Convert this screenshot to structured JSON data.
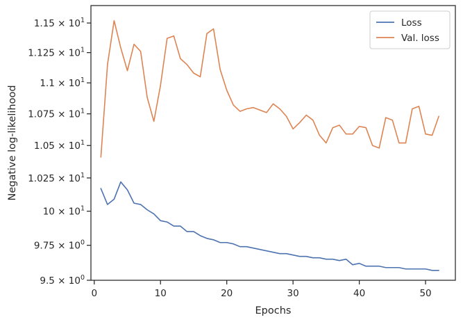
{
  "chart_data": {
    "type": "line",
    "xlabel": "Epochs",
    "ylabel": "Negative log-likelihood",
    "xlim": [
      -0.5,
      54.5
    ],
    "ylim": [
      9.5,
      11.65
    ],
    "yscale": "log",
    "grid": false,
    "legend_position": "top-right",
    "x_ticks": [
      {
        "value": 0,
        "label": "0"
      },
      {
        "value": 10,
        "label": "10"
      },
      {
        "value": 20,
        "label": "20"
      },
      {
        "value": 30,
        "label": "30"
      },
      {
        "value": 40,
        "label": "40"
      },
      {
        "value": 50,
        "label": "50"
      }
    ],
    "y_ticks": [
      {
        "value": 9.5,
        "mant": "9.5",
        "exp": "0"
      },
      {
        "value": 9.75,
        "mant": "9.75",
        "exp": "0"
      },
      {
        "value": 10.0,
        "mant": "10",
        "exp": "1"
      },
      {
        "value": 10.25,
        "mant": "1.025",
        "exp": "1"
      },
      {
        "value": 10.5,
        "mant": "1.05",
        "exp": "1"
      },
      {
        "value": 10.75,
        "mant": "1.075",
        "exp": "1"
      },
      {
        "value": 11.0,
        "mant": "1.1",
        "exp": "1"
      },
      {
        "value": 11.25,
        "mant": "1.125",
        "exp": "1"
      },
      {
        "value": 11.5,
        "mant": "1.15",
        "exp": "1"
      }
    ],
    "x": [
      1,
      2,
      3,
      4,
      5,
      6,
      7,
      8,
      9,
      10,
      11,
      12,
      13,
      14,
      15,
      16,
      17,
      18,
      19,
      20,
      21,
      22,
      23,
      24,
      25,
      26,
      27,
      28,
      29,
      30,
      31,
      32,
      33,
      34,
      35,
      36,
      37,
      38,
      39,
      40,
      41,
      42,
      43,
      44,
      45,
      46,
      47,
      48,
      49,
      50,
      51,
      52
    ],
    "series": [
      {
        "name": "Loss",
        "color": "#4c72b0",
        "values": [
          10.17,
          10.05,
          10.09,
          10.22,
          10.16,
          10.06,
          10.05,
          10.01,
          9.98,
          9.93,
          9.92,
          9.89,
          9.89,
          9.85,
          9.85,
          9.82,
          9.8,
          9.79,
          9.77,
          9.77,
          9.76,
          9.74,
          9.74,
          9.73,
          9.72,
          9.71,
          9.7,
          9.69,
          9.69,
          9.68,
          9.67,
          9.67,
          9.66,
          9.66,
          9.65,
          9.65,
          9.64,
          9.65,
          9.61,
          9.62,
          9.6,
          9.6,
          9.6,
          9.59,
          9.59,
          9.59,
          9.58,
          9.58,
          9.58,
          9.58,
          9.57,
          9.57
        ]
      },
      {
        "name": "Val. loss",
        "color": "#dd8452",
        "values": [
          10.41,
          11.15,
          11.52,
          11.29,
          11.1,
          11.32,
          11.26,
          10.88,
          10.69,
          10.98,
          11.37,
          11.39,
          11.2,
          11.15,
          11.08,
          11.05,
          11.41,
          11.45,
          11.11,
          10.94,
          10.82,
          10.77,
          10.79,
          10.8,
          10.78,
          10.76,
          10.83,
          10.79,
          10.73,
          10.63,
          10.68,
          10.74,
          10.7,
          10.58,
          10.52,
          10.64,
          10.66,
          10.59,
          10.59,
          10.65,
          10.64,
          10.5,
          10.48,
          10.72,
          10.7,
          10.52,
          10.52,
          10.79,
          10.81,
          10.59,
          10.58,
          10.73
        ]
      }
    ]
  }
}
